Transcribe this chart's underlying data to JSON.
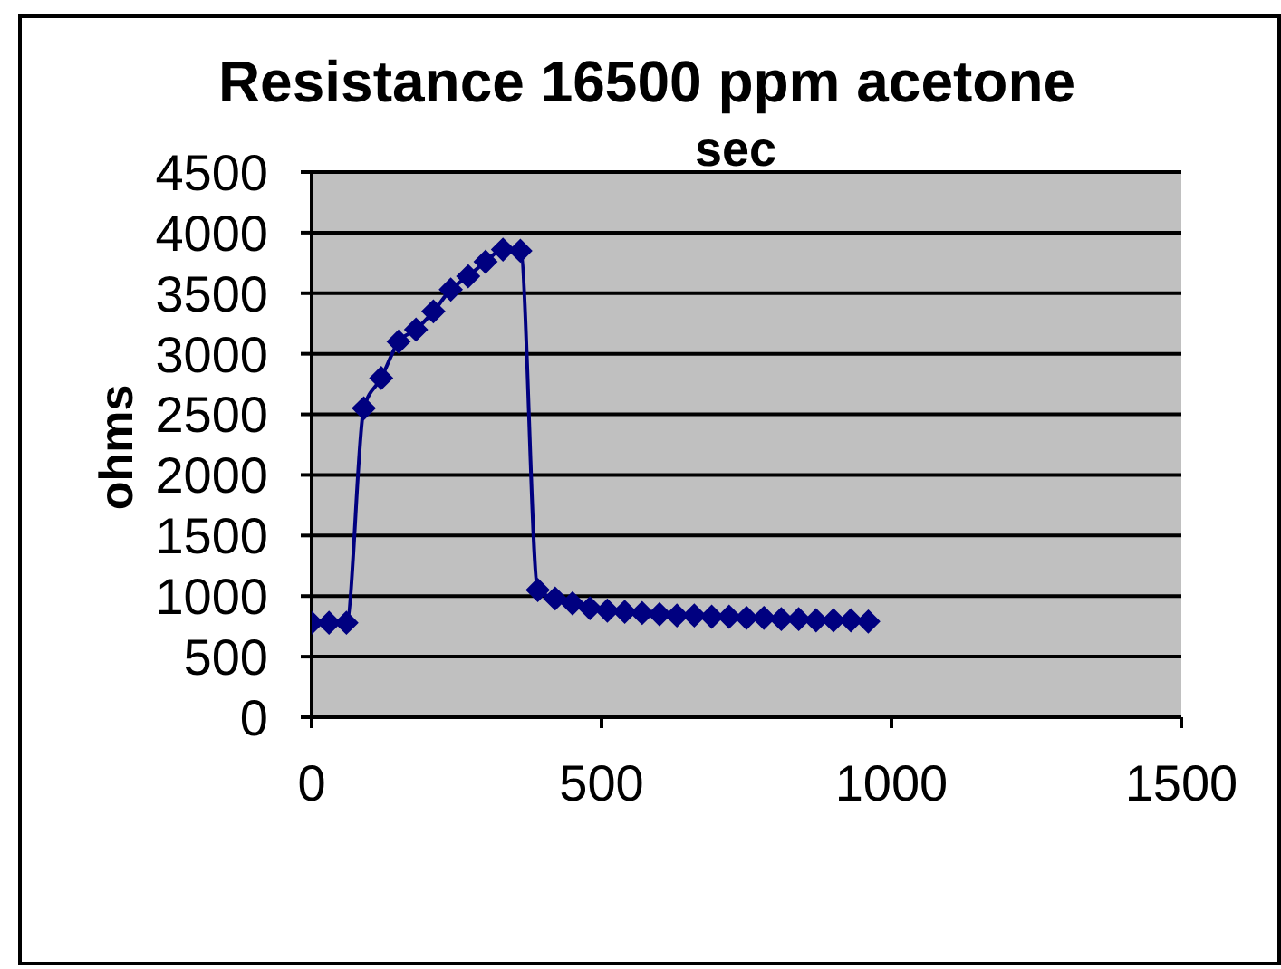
{
  "chart_data": {
    "type": "line",
    "title": "Resistance 16500 ppm acetone",
    "xlabel": "sec",
    "ylabel": "ohms",
    "x": [
      0,
      30,
      60,
      90,
      120,
      150,
      180,
      210,
      240,
      270,
      300,
      330,
      360,
      390,
      420,
      450,
      480,
      510,
      540,
      570,
      600,
      630,
      660,
      690,
      720,
      750,
      780,
      810,
      840,
      870,
      900,
      930,
      960
    ],
    "series": [
      {
        "color": "#000080",
        "values": [
          780,
          780,
          780,
          2550,
          2800,
          3100,
          3200,
          3350,
          3530,
          3640,
          3760,
          3860,
          3850,
          1050,
          980,
          940,
          900,
          880,
          870,
          860,
          850,
          840,
          840,
          830,
          830,
          820,
          820,
          810,
          810,
          800,
          800,
          800,
          790
        ]
      }
    ],
    "xlim": [
      0,
      1500
    ],
    "ylim": [
      0,
      4500
    ],
    "xticks": [
      0,
      500,
      1000,
      1500
    ],
    "yticks": [
      0,
      500,
      1000,
      1500,
      2000,
      2500,
      3000,
      3500,
      4000,
      4500
    ],
    "grid": "y",
    "marker": "diamond",
    "line_style": "solid"
  }
}
